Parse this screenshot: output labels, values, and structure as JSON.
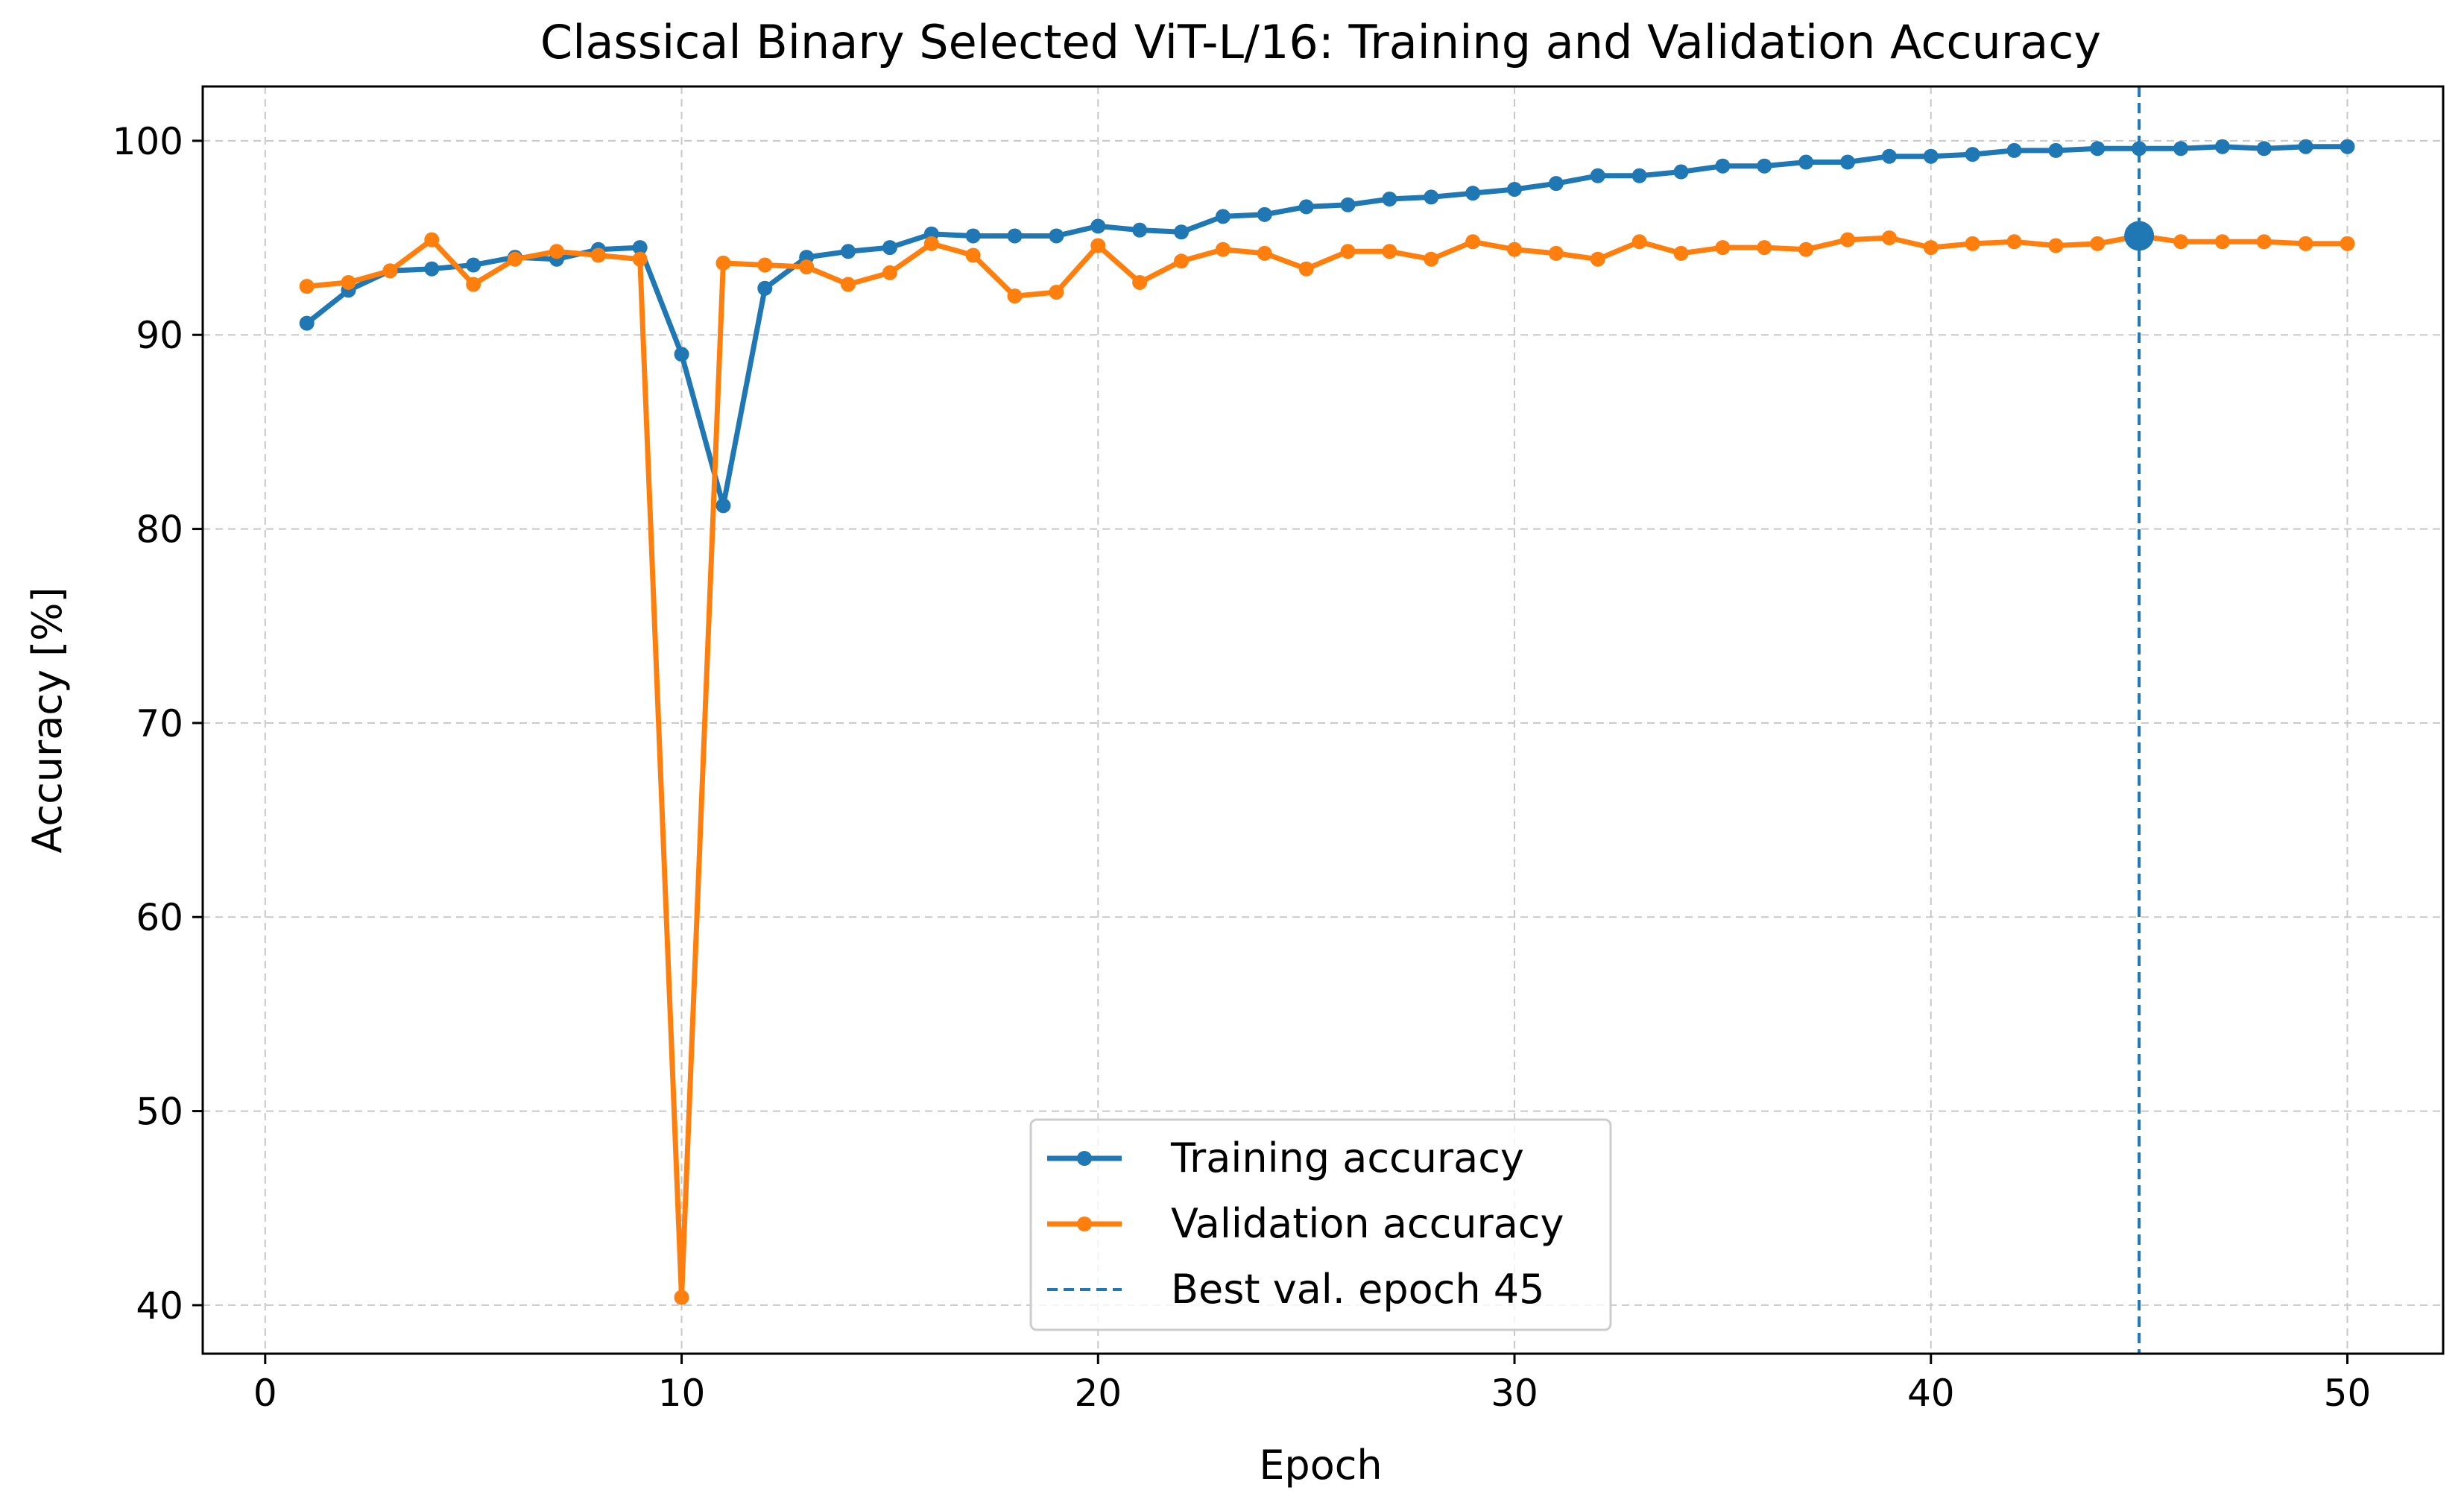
{
  "chart_data": {
    "type": "line",
    "title": "Classical Binary Selected ViT-L/16: Training and Validation Accuracy",
    "xlabel": "Epoch",
    "ylabel": "Accuracy [%]",
    "xlim": [
      -1.5,
      52.3
    ],
    "ylim": [
      37.5,
      102.8
    ],
    "xticks": [
      0,
      10,
      20,
      30,
      40,
      50
    ],
    "yticks": [
      40,
      50,
      60,
      70,
      80,
      90,
      100
    ],
    "grid": true,
    "legend_position": "bottom-center",
    "x": [
      1,
      2,
      3,
      4,
      5,
      6,
      7,
      8,
      9,
      10,
      11,
      12,
      13,
      14,
      15,
      16,
      17,
      18,
      19,
      20,
      21,
      22,
      23,
      24,
      25,
      26,
      27,
      28,
      29,
      30,
      31,
      32,
      33,
      34,
      35,
      36,
      37,
      38,
      39,
      40,
      41,
      42,
      43,
      44,
      45,
      46,
      47,
      48,
      49,
      50
    ],
    "series": [
      {
        "name": "Training accuracy",
        "color": "#1f77b4",
        "values": [
          90.6,
          92.3,
          93.3,
          93.4,
          93.6,
          94.0,
          93.9,
          94.4,
          94.5,
          89.0,
          81.2,
          92.4,
          94.0,
          94.3,
          94.5,
          95.2,
          95.1,
          95.1,
          95.1,
          95.6,
          95.4,
          95.3,
          96.1,
          96.2,
          96.6,
          96.7,
          97.0,
          97.1,
          97.3,
          97.5,
          97.8,
          98.2,
          98.2,
          98.4,
          98.7,
          98.7,
          98.9,
          98.9,
          99.2,
          99.2,
          99.3,
          99.5,
          99.5,
          99.6,
          99.6,
          99.6,
          99.7,
          99.6,
          99.7,
          99.7
        ]
      },
      {
        "name": "Validation accuracy",
        "color": "#ff7f0e",
        "values": [
          92.5,
          92.7,
          93.3,
          94.9,
          92.6,
          93.9,
          94.3,
          94.1,
          93.9,
          40.4,
          93.7,
          93.6,
          93.5,
          92.6,
          93.2,
          94.7,
          94.1,
          92.0,
          92.2,
          94.6,
          92.7,
          93.8,
          94.4,
          94.2,
          93.4,
          94.3,
          94.3,
          93.9,
          94.8,
          94.4,
          94.2,
          93.9,
          94.8,
          94.2,
          94.5,
          94.5,
          94.4,
          94.9,
          95.0,
          94.5,
          94.7,
          94.8,
          94.6,
          94.7,
          95.1,
          94.8,
          94.8,
          94.8,
          94.7,
          94.7
        ]
      }
    ],
    "best_epoch": {
      "label": "Best val. epoch 45",
      "epoch": 45,
      "value": 95.1,
      "color": "#1f77b4"
    }
  }
}
